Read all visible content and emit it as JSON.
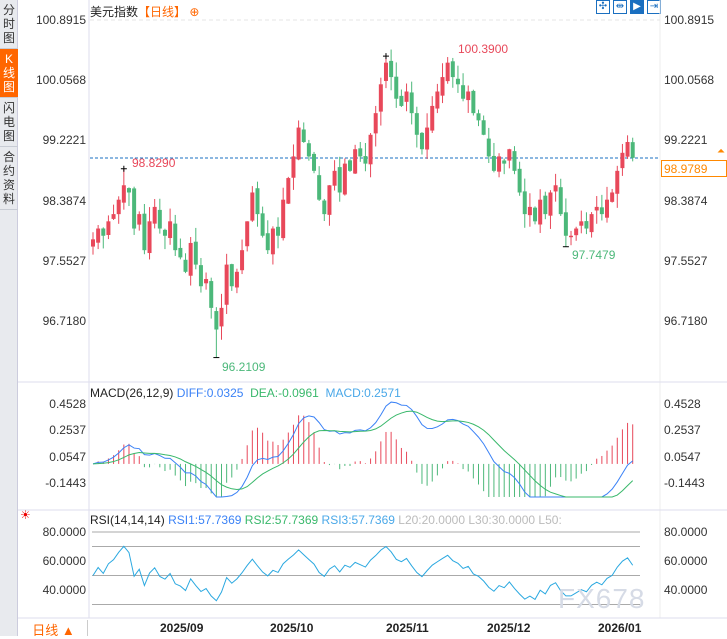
{
  "sidebar": {
    "tabs": [
      {
        "label": "分时图",
        "active": false
      },
      {
        "label": "K线图",
        "active": true
      },
      {
        "label": "闪电图",
        "active": false
      },
      {
        "label": "合约资料",
        "active": false
      }
    ]
  },
  "header": {
    "title": "美元指数",
    "period": "【日线】",
    "add_icon": "plus-circle-icon"
  },
  "toolbar": [
    {
      "icon": "crosshair-icon",
      "active": false
    },
    {
      "icon": "zoom-range-icon",
      "active": false
    },
    {
      "icon": "play-range-icon",
      "active": true
    },
    {
      "icon": "move-right-icon",
      "active": false
    }
  ],
  "price_axis": {
    "ticks": [
      "100.8915",
      "100.0568",
      "99.2221",
      "98.3874",
      "97.5527",
      "96.7180"
    ],
    "top": 100.8915,
    "bottom": 96.718
  },
  "current_price": "98.9789",
  "reference_line": 98.9789,
  "annotations": {
    "high": "100.3900",
    "low": "96.2109",
    "left_high": "98.8290",
    "right_low": "97.7479"
  },
  "colors": {
    "up": "#e8485a",
    "down": "#4cb87a",
    "diff": "#3b82f6",
    "dea": "#39b86b",
    "accent": "#ff6600"
  },
  "chart_data": {
    "type": "candlestick",
    "closes": [
      97.85,
      98.0,
      97.9,
      98.1,
      98.2,
      98.4,
      98.6,
      98.5,
      98.0,
      98.2,
      97.7,
      98.1,
      98.3,
      98.0,
      97.9,
      98.1,
      97.7,
      97.6,
      97.4,
      97.8,
      97.5,
      97.2,
      97.3,
      96.9,
      96.6,
      96.9,
      97.5,
      97.2,
      97.4,
      97.7,
      98.1,
      98.5,
      98.2,
      97.9,
      97.7,
      98.0,
      97.9,
      98.4,
      98.7,
      99.0,
      99.4,
      99.2,
      99.0,
      98.8,
      98.4,
      98.2,
      98.6,
      98.8,
      98.5,
      98.9,
      98.8,
      99.1,
      99.0,
      98.9,
      99.3,
      99.6,
      100.0,
      100.3,
      100.1,
      99.8,
      99.7,
      99.9,
      99.6,
      99.3,
      99.1,
      99.4,
      99.7,
      99.9,
      100.1,
      100.3,
      100.1,
      100.0,
      99.8,
      99.9,
      99.6,
      99.5,
      99.3,
      99.0,
      98.8,
      99.0,
      98.9,
      99.1,
      98.8,
      98.5,
      98.2,
      98.3,
      98.1,
      98.4,
      98.2,
      98.5,
      98.6,
      98.2,
      97.9,
      97.9,
      98.0,
      98.1,
      98.0,
      98.2,
      98.3,
      98.2,
      98.4,
      98.5,
      98.8,
      99.05,
      99.2,
      98.98
    ]
  },
  "macd": {
    "label": "MACD(26,12,9)",
    "diff": "DIFF:0.0325",
    "dea": "DEA:-0.0961",
    "macd": "MACD:0.2571",
    "ticks": [
      "0.4528",
      "0.2537",
      "0.0547",
      "-0.1443"
    ],
    "top": 0.4528,
    "bottom": -0.1443
  },
  "rsi": {
    "label": "RSI(14,14,14)",
    "rsi1": "RSI1:57.7369",
    "rsi2": "RSI2:57.7369",
    "rsi3": "RSI3:57.7369",
    "l20": "L20:20.0000",
    "l30": "L30:30.0000",
    "l50": "L50:",
    "ticks": [
      "80.0000",
      "60.0000",
      "40.0000"
    ]
  },
  "x_axis": {
    "dates": [
      "2025/09",
      "2025/10",
      "2025/11",
      "2025/12",
      "2026/01"
    ]
  },
  "footer": {
    "period": "日线 ▲"
  },
  "watermark": "FX678"
}
